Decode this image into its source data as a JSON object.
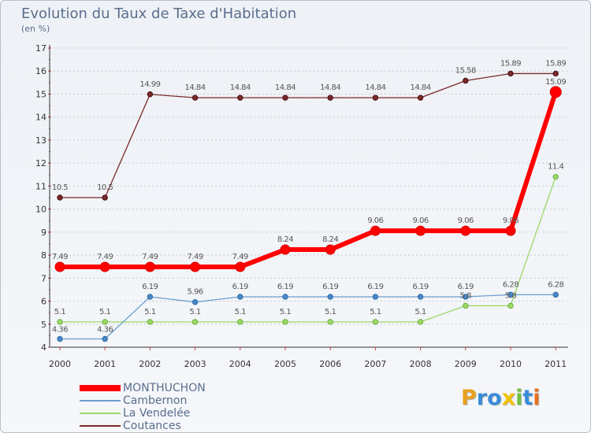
{
  "chart_data": {
    "type": "line",
    "title": "Evolution du Taux de Taxe d'Habitation",
    "subtitle": "(en %)",
    "x": [
      "2000",
      "2001",
      "2002",
      "2003",
      "2004",
      "2005",
      "2006",
      "2007",
      "2008",
      "2009",
      "2010",
      "2011"
    ],
    "ylim": [
      4,
      17
    ],
    "y_ticks": [
      4,
      5,
      6,
      7,
      8,
      9,
      10,
      11,
      12,
      13,
      14,
      15,
      16,
      17
    ],
    "grid": "horizontal dotted",
    "legend_position": "bottom-left",
    "series": [
      {
        "name": "MONTHUCHON",
        "color": "#ff0000",
        "values": [
          7.49,
          7.49,
          7.49,
          7.49,
          7.49,
          8.24,
          8.24,
          9.06,
          9.06,
          9.06,
          9.06,
          15.09
        ],
        "labels": [
          "7.49",
          "7.49",
          "7.49",
          "7.49",
          "7.49",
          "8.24",
          "8.24",
          "9.06",
          "9.06",
          "9.06",
          "9.06",
          "15.09"
        ]
      },
      {
        "name": "Cambernon",
        "color": "#6a9fcf",
        "values": [
          4.36,
          4.36,
          6.19,
          5.96,
          6.19,
          6.19,
          6.19,
          6.19,
          6.19,
          6.19,
          6.28,
          6.28
        ],
        "labels": [
          "4.36",
          "4.36",
          "6.19",
          "5.96",
          "6.19",
          "6.19",
          "6.19",
          "6.19",
          "6.19",
          "6.19",
          "6.28",
          "6.28"
        ]
      },
      {
        "name": "La Vendelée",
        "color": "#99d966",
        "values": [
          5.1,
          5.1,
          5.1,
          5.1,
          5.1,
          5.1,
          5.1,
          5.1,
          5.1,
          5.8,
          5.8,
          11.4
        ],
        "labels": [
          "5.1",
          "5.1",
          "5.1",
          "5.1",
          "5.1",
          "5.1",
          "5.1",
          "5.1",
          "5.1",
          "5.8",
          "5.8",
          "11.4"
        ]
      },
      {
        "name": "Coutances",
        "color": "#7a2a2a",
        "values": [
          10.5,
          10.5,
          14.99,
          14.84,
          14.84,
          14.84,
          14.84,
          14.84,
          14.84,
          15.58,
          15.89,
          15.89
        ],
        "labels": [
          "10.5",
          "10.5",
          "14.99",
          "14.84",
          "14.84",
          "14.84",
          "14.84",
          "14.84",
          "14.84",
          "15.58",
          "15.89",
          "15.89"
        ]
      }
    ]
  },
  "logo": {
    "letters": [
      "P",
      "r",
      "o",
      "x",
      "i",
      "t",
      "i"
    ],
    "colors": [
      "#e8a020",
      "#3a8cd8",
      "#3a8cd8",
      "#f0c000",
      "#70c040",
      "#3a8cd8",
      "#e87020"
    ]
  }
}
